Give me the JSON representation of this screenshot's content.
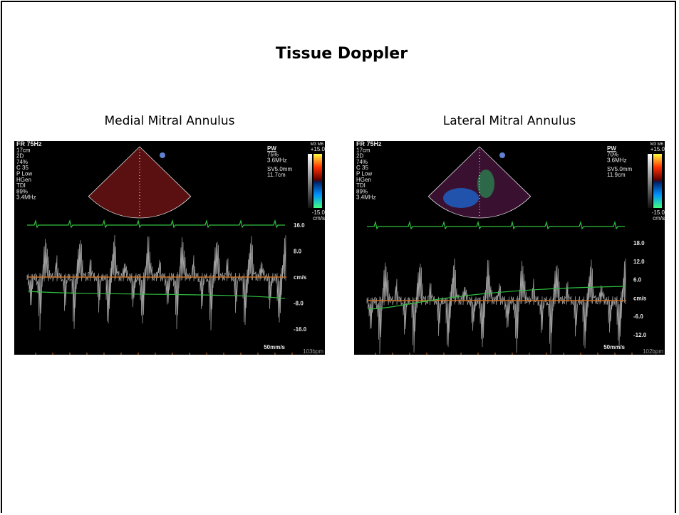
{
  "title": "Tissue Doppler",
  "panels": [
    {
      "caption": "Medial Mitral Annulus",
      "left_info": [
        "FR 75Hz",
        "17cm",
        "2D",
        "74%",
        "C 35",
        "P Low",
        "HGen",
        "TDI",
        "89%",
        "3.4MHz"
      ],
      "right_info": [
        "PW",
        "75%",
        "3.6MHz",
        "SV5.0mm",
        "11.7cm"
      ],
      "scale_top": "M3 M6",
      "scale_max": "+15.0",
      "scale_min": "-15.0",
      "scale_unit": "cm/s",
      "axis_labels": [
        "16.0",
        "8.0",
        "cm/s",
        "-8.0",
        "-16.0"
      ],
      "sweep": "50mm/s",
      "heart_rate": "103bpm"
    },
    {
      "caption": "Lateral Mitral Annulus",
      "left_info": [
        "FR 75Hz",
        "17cm",
        "2D",
        "74%",
        "C 35",
        "P Low",
        "HGen",
        "TDI",
        "89%",
        "3.4MHz"
      ],
      "right_info": [
        "PW",
        "70%",
        "3.6MHz",
        "SV5.0mm",
        "11.9cm"
      ],
      "scale_top": "M3 M6",
      "scale_max": "+15.0",
      "scale_min": "-15.0",
      "scale_unit": "cm/s",
      "axis_labels": [
        "18.0",
        "12.0",
        "6.0",
        "cm/s",
        "-6.0",
        "-12.0"
      ],
      "sweep": "50mm/s",
      "heart_rate": "102bpm"
    }
  ]
}
